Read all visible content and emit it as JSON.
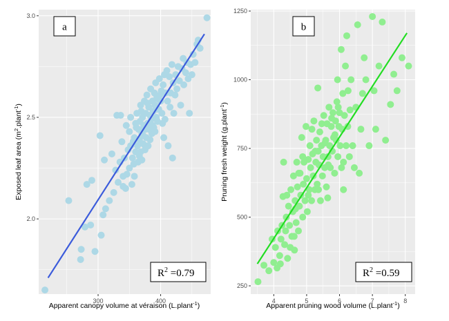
{
  "chart_data": [
    {
      "type": "scatter",
      "panel_label": "a",
      "xlabel": "Apparent canopy volume at véraison (L.plant",
      "xlabel_sup": "-1",
      "xlabel_end": ")",
      "ylabel": "Exposed leaf area (m",
      "ylabel_sup": "2",
      "ylabel_mid": ".plant",
      "ylabel_sup2": "-1",
      "ylabel_end": ")",
      "xlim": [
        205,
        480
      ],
      "ylim": [
        1.63,
        3.03
      ],
      "xticks": [
        300,
        400
      ],
      "yticks": [
        2.0,
        2.5,
        3.0
      ],
      "ytick_labels": [
        "2.0",
        "2.5",
        "3.0"
      ],
      "annotation": {
        "r2_base": "R",
        "r2_sup": "2",
        "r2_value": " =0.79"
      },
      "point_color": "#add8e6",
      "fit_color": "#3b5bdb",
      "fit": {
        "x": [
          220,
          470
        ],
        "y": [
          1.71,
          2.91
        ]
      },
      "points": [
        [
          215,
          1.65
        ],
        [
          253,
          2.09
        ],
        [
          272,
          1.8
        ],
        [
          273,
          1.85
        ],
        [
          279,
          1.96
        ],
        [
          288,
          1.97
        ],
        [
          295,
          1.84
        ],
        [
          305,
          1.92
        ],
        [
          282,
          2.17
        ],
        [
          290,
          2.19
        ],
        [
          308,
          2.02
        ],
        [
          310,
          2.29
        ],
        [
          312,
          2.05
        ],
        [
          318,
          2.09
        ],
        [
          303,
          2.41
        ],
        [
          325,
          2.13
        ],
        [
          328,
          2.24
        ],
        [
          322,
          2.32
        ],
        [
          332,
          2.18
        ],
        [
          330,
          2.51
        ],
        [
          335,
          2.28
        ],
        [
          336,
          2.51
        ],
        [
          340,
          2.21
        ],
        [
          338,
          2.38
        ],
        [
          342,
          2.3
        ],
        [
          344,
          2.15
        ],
        [
          345,
          2.46
        ],
        [
          348,
          2.34
        ],
        [
          350,
          2.25
        ],
        [
          350,
          2.43
        ],
        [
          352,
          2.5
        ],
        [
          354,
          2.17
        ],
        [
          355,
          2.3
        ],
        [
          356,
          2.38
        ],
        [
          358,
          2.4
        ],
        [
          358,
          2.21
        ],
        [
          360,
          2.33
        ],
        [
          360,
          2.47
        ],
        [
          362,
          2.52
        ],
        [
          363,
          2.36
        ],
        [
          364,
          2.28
        ],
        [
          365,
          2.44
        ],
        [
          366,
          2.39
        ],
        [
          367,
          2.48
        ],
        [
          368,
          2.33
        ],
        [
          368,
          2.56
        ],
        [
          370,
          2.42
        ],
        [
          370,
          2.29
        ],
        [
          371,
          2.5
        ],
        [
          372,
          2.37
        ],
        [
          373,
          2.46
        ],
        [
          374,
          2.58
        ],
        [
          375,
          2.34
        ],
        [
          375,
          2.44
        ],
        [
          376,
          2.52
        ],
        [
          377,
          2.4
        ],
        [
          378,
          2.61
        ],
        [
          379,
          2.47
        ],
        [
          380,
          2.36
        ],
        [
          381,
          2.55
        ],
        [
          382,
          2.44
        ],
        [
          383,
          2.51
        ],
        [
          384,
          2.64
        ],
        [
          385,
          2.49
        ],
        [
          386,
          2.42
        ],
        [
          387,
          2.58
        ],
        [
          388,
          2.53
        ],
        [
          389,
          2.45
        ],
        [
          390,
          2.62
        ],
        [
          391,
          2.56
        ],
        [
          392,
          2.67
        ],
        [
          393,
          2.5
        ],
        [
          394,
          2.6
        ],
        [
          395,
          2.48
        ],
        [
          396,
          2.59
        ],
        [
          397,
          2.54
        ],
        [
          398,
          2.69
        ],
        [
          400,
          2.58
        ],
        [
          401,
          2.63
        ],
        [
          402,
          2.52
        ],
        [
          404,
          2.66
        ],
        [
          405,
          2.4
        ],
        [
          406,
          2.71
        ],
        [
          407,
          2.49
        ],
        [
          408,
          2.62
        ],
        [
          410,
          2.73
        ],
        [
          411,
          2.58
        ],
        [
          412,
          2.36
        ],
        [
          414,
          2.7
        ],
        [
          415,
          2.55
        ],
        [
          416,
          2.62
        ],
        [
          418,
          2.76
        ],
        [
          419,
          2.3
        ],
        [
          420,
          2.67
        ],
        [
          421,
          2.52
        ],
        [
          423,
          2.61
        ],
        [
          424,
          2.71
        ],
        [
          426,
          2.64
        ],
        [
          428,
          2.75
        ],
        [
          430,
          2.68
        ],
        [
          432,
          2.56
        ],
        [
          434,
          2.74
        ],
        [
          436,
          2.79
        ],
        [
          437,
          2.66
        ],
        [
          440,
          2.72
        ],
        [
          442,
          2.77
        ],
        [
          444,
          2.69
        ],
        [
          446,
          2.52
        ],
        [
          448,
          2.76
        ],
        [
          450,
          2.71
        ],
        [
          452,
          2.81
        ],
        [
          455,
          2.77
        ],
        [
          458,
          2.86
        ],
        [
          460,
          2.88
        ],
        [
          463,
          2.84
        ],
        [
          474,
          2.99
        ],
        [
          340,
          2.16
        ],
        [
          346,
          2.22
        ],
        [
          352,
          2.36
        ],
        [
          357,
          2.27
        ],
        [
          361,
          2.45
        ],
        [
          366,
          2.31
        ],
        [
          369,
          2.53
        ],
        [
          372,
          2.41
        ],
        [
          376,
          2.35
        ],
        [
          379,
          2.57
        ],
        [
          383,
          2.39
        ],
        [
          387,
          2.46
        ],
        [
          391,
          2.43
        ],
        [
          394,
          2.54
        ],
        [
          399,
          2.61
        ],
        [
          403,
          2.47
        ]
      ]
    },
    {
      "type": "scatter",
      "panel_label": "b",
      "xlabel": "Apparent pruning wood volume (L.plant",
      "xlabel_sup": "-1",
      "xlabel_end": ")",
      "ylabel": "Pruning fresh weight (g.plant",
      "ylabel_sup": "-1",
      "ylabel_end": ")",
      "xlim": [
        3.3,
        8.3
      ],
      "ylim": [
        220,
        1255
      ],
      "xticks": [
        4,
        5,
        6,
        7,
        8
      ],
      "yticks": [
        250,
        500,
        750,
        1000,
        1250
      ],
      "ytick_labels": [
        "250",
        "500",
        "750",
        "1000",
        "1250"
      ],
      "annotation": {
        "r2_base": "R",
        "r2_sup": "2",
        "r2_value": " =0.59"
      },
      "point_color": "#90ee90",
      "fit_color": "#22dd22",
      "fit": {
        "x": [
          3.5,
          8.05
        ],
        "y": [
          330,
          1170
        ]
      },
      "points": [
        [
          3.52,
          265
        ],
        [
          3.7,
          325
        ],
        [
          3.85,
          305
        ],
        [
          3.95,
          420
        ],
        [
          4.0,
          335
        ],
        [
          4.05,
          390
        ],
        [
          4.1,
          315
        ],
        [
          4.12,
          450
        ],
        [
          4.18,
          360
        ],
        [
          4.22,
          420
        ],
        [
          4.25,
          470
        ],
        [
          4.28,
          575
        ],
        [
          4.3,
          700
        ],
        [
          4.33,
          400
        ],
        [
          4.38,
          500
        ],
        [
          4.42,
          350
        ],
        [
          4.45,
          540
        ],
        [
          4.48,
          470
        ],
        [
          4.52,
          600
        ],
        [
          4.55,
          430
        ],
        [
          4.58,
          520
        ],
        [
          4.6,
          650
        ],
        [
          4.63,
          380
        ],
        [
          4.65,
          560
        ],
        [
          4.68,
          480
        ],
        [
          4.7,
          700
        ],
        [
          4.72,
          610
        ],
        [
          4.75,
          450
        ],
        [
          4.78,
          540
        ],
        [
          4.8,
          660
        ],
        [
          4.82,
          580
        ],
        [
          4.85,
          790
        ],
        [
          4.88,
          500
        ],
        [
          4.9,
          620
        ],
        [
          4.92,
          700
        ],
        [
          4.95,
          560
        ],
        [
          4.98,
          830
        ],
        [
          5.0,
          640
        ],
        [
          5.02,
          520
        ],
        [
          5.05,
          710
        ],
        [
          5.08,
          600
        ],
        [
          5.1,
          760
        ],
        [
          5.12,
          680
        ],
        [
          5.15,
          560
        ],
        [
          5.18,
          730
        ],
        [
          5.2,
          650
        ],
        [
          5.22,
          850
        ],
        [
          5.25,
          600
        ],
        [
          5.28,
          700
        ],
        [
          5.3,
          780
        ],
        [
          5.32,
          620
        ],
        [
          5.35,
          740
        ],
        [
          5.38,
          690
        ],
        [
          5.4,
          810
        ],
        [
          5.42,
          560
        ],
        [
          5.45,
          760
        ],
        [
          5.48,
          650
        ],
        [
          5.5,
          720
        ],
        [
          5.52,
          870
        ],
        [
          5.55,
          680
        ],
        [
          5.58,
          780
        ],
        [
          5.6,
          610
        ],
        [
          5.62,
          840
        ],
        [
          5.65,
          720
        ],
        [
          5.68,
          900
        ],
        [
          5.7,
          760
        ],
        [
          5.72,
          680
        ],
        [
          5.75,
          830
        ],
        [
          5.78,
          740
        ],
        [
          5.8,
          880
        ],
        [
          5.82,
          790
        ],
        [
          5.85,
          660
        ],
        [
          5.88,
          850
        ],
        [
          5.9,
          780
        ],
        [
          5.92,
          920
        ],
        [
          5.95,
          720
        ],
        [
          5.98,
          830
        ],
        [
          6.0,
          880
        ],
        [
          6.02,
          760
        ],
        [
          6.05,
          1110
        ],
        [
          6.08,
          820
        ],
        [
          6.1,
          950
        ],
        [
          6.12,
          700
        ],
        [
          6.15,
          870
        ],
        [
          6.18,
          1050
        ],
        [
          6.2,
          760
        ],
        [
          6.22,
          1160
        ],
        [
          6.25,
          830
        ],
        [
          6.3,
          720
        ],
        [
          6.32,
          890
        ],
        [
          6.35,
          1000
        ],
        [
          6.4,
          760
        ],
        [
          6.45,
          680
        ],
        [
          6.5,
          900
        ],
        [
          6.55,
          1200
        ],
        [
          6.6,
          660
        ],
        [
          6.65,
          820
        ],
        [
          6.7,
          950
        ],
        [
          6.75,
          1080
        ],
        [
          6.8,
          1000
        ],
        [
          6.9,
          760
        ],
        [
          7.0,
          1230
        ],
        [
          7.05,
          960
        ],
        [
          7.1,
          820
        ],
        [
          7.2,
          1050
        ],
        [
          7.3,
          1210
        ],
        [
          7.4,
          780
        ],
        [
          7.55,
          910
        ],
        [
          7.65,
          1020
        ],
        [
          7.75,
          960
        ],
        [
          7.9,
          1080
        ],
        [
          8.1,
          1050
        ],
        [
          4.4,
          580
        ],
        [
          4.62,
          430
        ],
        [
          4.76,
          660
        ],
        [
          4.88,
          720
        ],
        [
          5.05,
          580
        ],
        [
          5.16,
          820
        ],
        [
          5.26,
          740
        ],
        [
          5.36,
          600
        ],
        [
          5.46,
          840
        ],
        [
          5.56,
          770
        ],
        [
          5.66,
          690
        ],
        [
          5.76,
          860
        ],
        [
          5.86,
          800
        ],
        [
          5.96,
          900
        ],
        [
          6.06,
          680
        ],
        [
          6.26,
          960
        ],
        [
          4.2,
          330
        ],
        [
          4.36,
          450
        ],
        [
          4.5,
          390
        ],
        [
          4.66,
          530
        ],
        [
          5.34,
          970
        ],
        [
          5.64,
          570
        ],
        [
          5.94,
          1000
        ],
        [
          6.12,
          600
        ]
      ]
    }
  ]
}
